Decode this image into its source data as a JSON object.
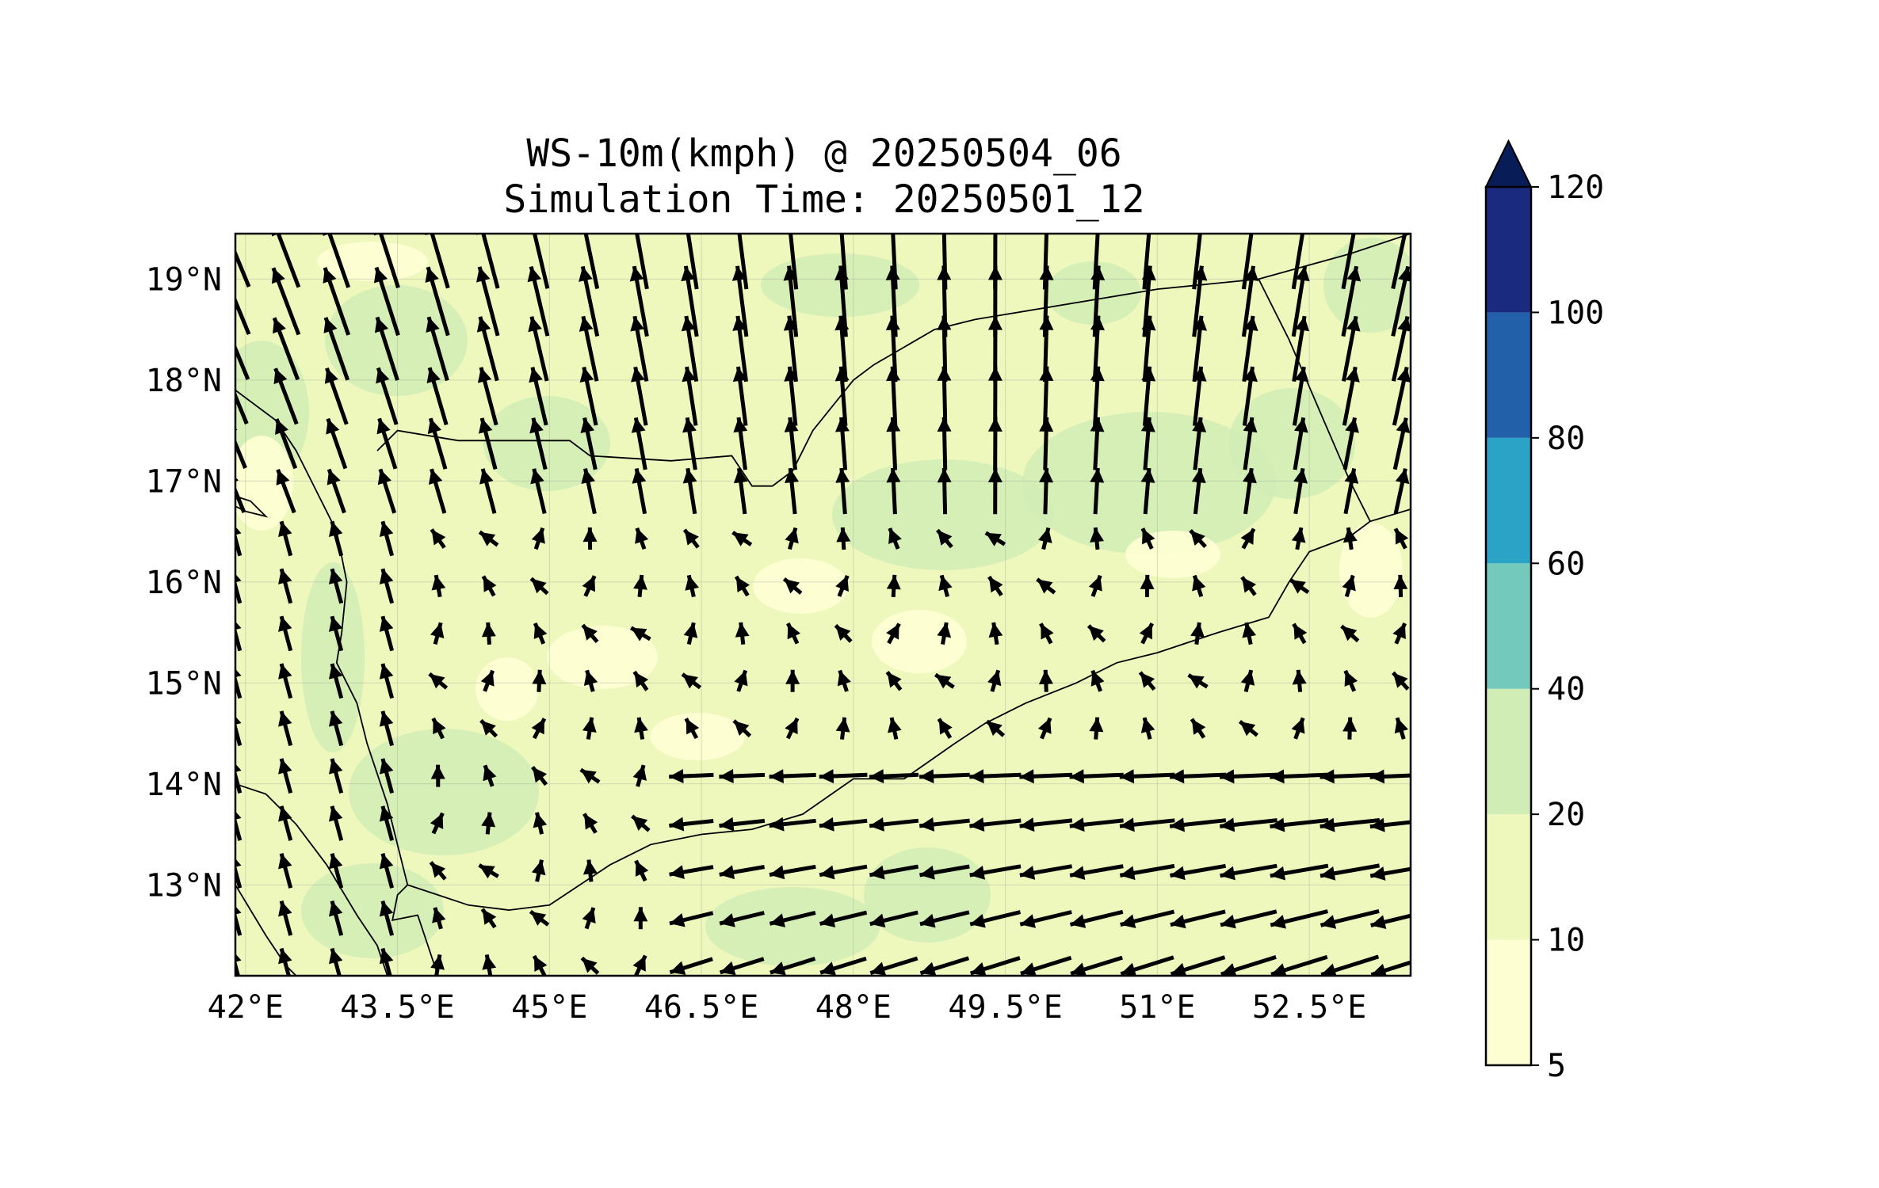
{
  "title": {
    "line1": "WS-10m(kmph) @ 20250504_06",
    "line2": "Simulation Time: 20250501_12"
  },
  "map": {
    "lon_range": [
      41.9,
      53.5
    ],
    "lat_range": [
      12.1,
      19.45
    ],
    "x_ticks": [
      {
        "value": 42.0,
        "label": "42°E"
      },
      {
        "value": 43.5,
        "label": "43.5°E"
      },
      {
        "value": 45.0,
        "label": "45°E"
      },
      {
        "value": 46.5,
        "label": "46.5°E"
      },
      {
        "value": 48.0,
        "label": "48°E"
      },
      {
        "value": 49.5,
        "label": "49.5°E"
      },
      {
        "value": 51.0,
        "label": "51°E"
      },
      {
        "value": 52.5,
        "label": "52.5°E"
      }
    ],
    "y_ticks": [
      {
        "value": 19,
        "label": "19°N"
      },
      {
        "value": 18,
        "label": "18°N"
      },
      {
        "value": 17,
        "label": "17°N"
      },
      {
        "value": 16,
        "label": "16°N"
      },
      {
        "value": 15,
        "label": "15°N"
      },
      {
        "value": 14,
        "label": "14°N"
      },
      {
        "value": 13,
        "label": "13°N"
      }
    ],
    "gridlines": true,
    "background_color": "#eef8bd",
    "boundaries": [
      [
        [
          43.9,
          12.1
        ],
        [
          43.7,
          12.7
        ],
        [
          43.45,
          12.65
        ],
        [
          43.5,
          12.9
        ],
        [
          43.6,
          13.0
        ],
        [
          43.9,
          12.9
        ],
        [
          44.2,
          12.8
        ],
        [
          44.6,
          12.75
        ],
        [
          45.0,
          12.8
        ],
        [
          45.3,
          13.0
        ],
        [
          45.6,
          13.2
        ],
        [
          46.0,
          13.4
        ],
        [
          46.5,
          13.5
        ],
        [
          47.0,
          13.55
        ],
        [
          47.5,
          13.7
        ],
        [
          48.0,
          14.05
        ],
        [
          48.5,
          14.05
        ],
        [
          49.0,
          14.4
        ],
        [
          49.3,
          14.6
        ],
        [
          49.7,
          14.8
        ],
        [
          50.2,
          15.0
        ],
        [
          50.6,
          15.2
        ],
        [
          51.0,
          15.3
        ],
        [
          51.6,
          15.5
        ],
        [
          52.1,
          15.65
        ],
        [
          52.3,
          16.0
        ],
        [
          52.5,
          16.3
        ],
        [
          52.9,
          16.45
        ],
        [
          53.1,
          16.6
        ],
        [
          53.5,
          16.72
        ]
      ],
      [
        [
          41.9,
          17.9
        ],
        [
          42.3,
          17.6
        ],
        [
          42.5,
          17.3
        ],
        [
          42.7,
          16.9
        ],
        [
          42.9,
          16.5
        ],
        [
          43.0,
          16.0
        ],
        [
          42.95,
          15.5
        ],
        [
          42.9,
          15.2
        ],
        [
          43.1,
          14.8
        ],
        [
          43.2,
          14.4
        ],
        [
          43.4,
          13.8
        ],
        [
          43.55,
          13.2
        ],
        [
          43.6,
          13.0
        ]
      ],
      [
        [
          43.3,
          17.3
        ],
        [
          43.5,
          17.5
        ],
        [
          44.1,
          17.4
        ],
        [
          45.2,
          17.4
        ],
        [
          45.4,
          17.25
        ],
        [
          46.2,
          17.2
        ],
        [
          46.8,
          17.25
        ],
        [
          47.0,
          16.95
        ],
        [
          47.2,
          16.95
        ],
        [
          47.4,
          17.1
        ],
        [
          47.6,
          17.5
        ],
        [
          48.0,
          18.0
        ],
        [
          48.2,
          18.15
        ],
        [
          48.8,
          18.5
        ],
        [
          49.2,
          18.6
        ],
        [
          51.0,
          18.9
        ],
        [
          52.0,
          19.0
        ],
        [
          52.9,
          19.25
        ],
        [
          53.5,
          19.45
        ]
      ],
      [
        [
          52.0,
          19.0
        ],
        [
          52.3,
          18.4
        ],
        [
          52.6,
          17.7
        ],
        [
          52.9,
          17.0
        ],
        [
          53.1,
          16.6
        ]
      ],
      [
        [
          41.9,
          14.0
        ],
        [
          42.2,
          13.9
        ],
        [
          42.5,
          13.6
        ],
        [
          42.8,
          13.2
        ],
        [
          43.1,
          12.7
        ],
        [
          43.3,
          12.4
        ],
        [
          43.4,
          12.1
        ]
      ],
      [
        [
          41.9,
          13.0
        ],
        [
          42.2,
          12.5
        ],
        [
          42.4,
          12.2
        ],
        [
          42.5,
          12.1
        ]
      ],
      [
        [
          41.9,
          16.85
        ],
        [
          42.05,
          16.8
        ],
        [
          42.2,
          16.65
        ],
        [
          42.0,
          16.7
        ],
        [
          41.9,
          16.75
        ]
      ]
    ],
    "wind_color": "#000000"
  },
  "colorbar": {
    "levels": [
      5,
      10,
      20,
      40,
      60,
      80,
      100,
      120
    ],
    "tick_labels": [
      "5",
      "10",
      "20",
      "40",
      "60",
      "80",
      "100",
      "120"
    ],
    "colors": [
      "#fdfed2",
      "#eef8bd",
      "#d1edb6",
      "#73c9bc",
      "#2ba3c6",
      "#2260a9",
      "#1a2a7e"
    ],
    "extend_color": "#081d58",
    "extend": "max"
  }
}
